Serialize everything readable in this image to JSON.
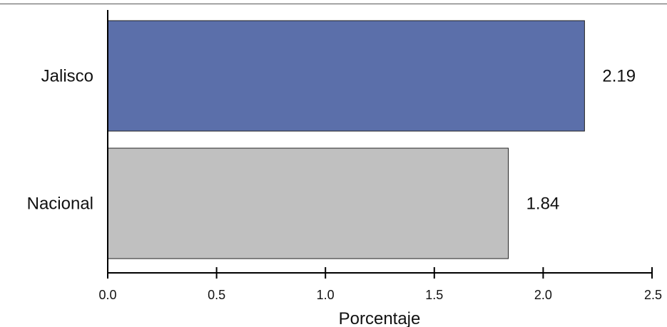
{
  "chart_data": {
    "type": "bar",
    "orientation": "horizontal",
    "categories": [
      "Jalisco",
      "Nacional"
    ],
    "values": [
      2.19,
      1.84
    ],
    "value_labels": [
      "2.19",
      "1.84"
    ],
    "bar_colors": [
      "#5b6faa",
      "#c0c0c0"
    ],
    "xlabel": "Porcentaje",
    "ylabel": "",
    "title": "",
    "xlim": [
      0.0,
      2.5
    ],
    "xticks": [
      "0.0",
      "0.5",
      "1.0",
      "1.5",
      "2.0",
      "2.5"
    ],
    "grid": false,
    "legend": "none"
  }
}
